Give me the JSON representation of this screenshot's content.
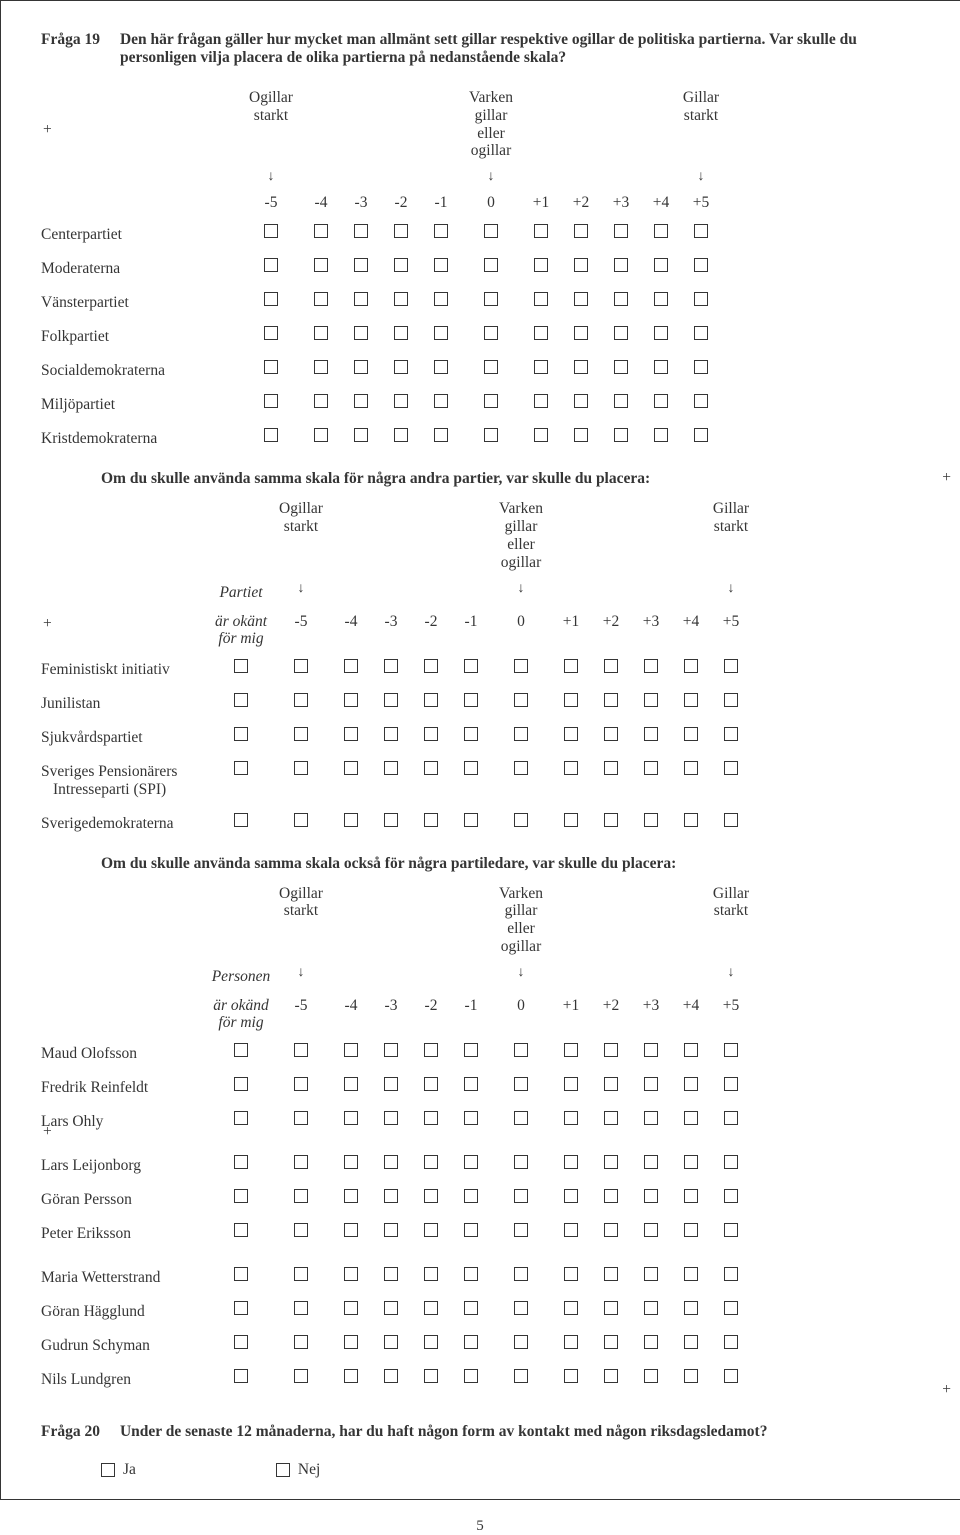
{
  "q19": {
    "num": "Fråga 19",
    "text": "Den här frågan gäller hur mycket man allmänt sett gillar respektive ogillar de politiska partierna. Var skulle du personligen vilja placera de olika partierna på nedanstående skala?"
  },
  "scale": {
    "left1": "Ogillar",
    "left2": "starkt",
    "mid1": "Varken gillar",
    "mid2": "eller ogillar",
    "right1": "Gillar",
    "right2": "starkt",
    "arrow": "↓",
    "nums": [
      "-5",
      "-4",
      "-3",
      "-2",
      "-1",
      "0",
      "+1",
      "+2",
      "+3",
      "+4",
      "+5"
    ]
  },
  "parties1": [
    "Centerpartiet",
    "Moderaterna",
    "Vänsterpartiet",
    "Folkpartiet",
    "Socialdemokraterna",
    "Miljöpartiet",
    "Kristdemokraterna"
  ],
  "sub2_prompt": "Om du skulle använda samma skala för några andra partier, var skulle du placera:",
  "extra2": {
    "l1": "Partiet",
    "l2": "är okänt",
    "l3": "för mig"
  },
  "parties2": [
    "Feministiskt initiativ",
    "Junilistan",
    "Sjukvårdspartiet",
    "Sveriges Pensionärers\n  Intresseparti (SPI)",
    "Sverigedemokraterna"
  ],
  "sub3_prompt": "Om du skulle använda samma skala också för några partiledare, var skulle du placera:",
  "extra3": {
    "l1": "Personen",
    "l2": "är okänd",
    "l3": "för mig"
  },
  "leaders_a": [
    "Maud Olofsson",
    "Fredrik Reinfeldt",
    "Lars Ohly"
  ],
  "leaders_b": [
    "Lars Leijonborg",
    "Göran Persson",
    "Peter Eriksson"
  ],
  "leaders_c": [
    "Maria Wetterstrand",
    "Göran Hägglund",
    "Gudrun Schyman",
    "Nils Lundgren"
  ],
  "q20": {
    "num": "Fråga 20",
    "text": "Under de senaste 12 månaderna, har du haft någon form av kontakt med någon riksdagsledamot?",
    "yes": "Ja",
    "no": "Nej"
  },
  "pagefoot": "5",
  "plus": "+"
}
